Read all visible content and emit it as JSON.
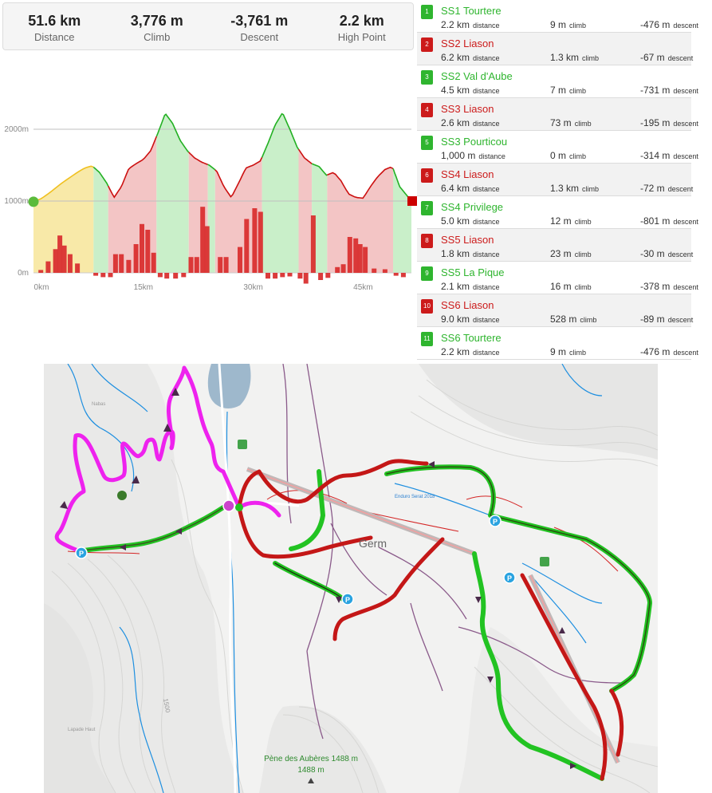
{
  "stats": [
    {
      "value": "51.6 km",
      "label": "Distance"
    },
    {
      "value": "3,776 m",
      "label": "Climb"
    },
    {
      "value": "-3,761 m",
      "label": "Descent"
    },
    {
      "value": "2.2 km",
      "label": "High Point"
    }
  ],
  "chart_data": {
    "type": "area",
    "title": "",
    "xlabel": "",
    "ylabel": "",
    "x_ticks": [
      "0km",
      "15km",
      "30km",
      "45km"
    ],
    "y_ticks": [
      "2000m",
      "1000m",
      "0m"
    ],
    "xlim": [
      0,
      51.6
    ],
    "ylim": [
      0,
      2000
    ],
    "grid": true,
    "x": [
      0,
      1,
      2,
      3,
      4,
      5,
      6,
      7,
      8,
      9,
      10,
      11,
      12,
      13,
      14,
      15,
      16,
      17,
      18,
      19,
      20,
      21,
      22,
      23,
      24,
      25,
      26,
      27,
      28,
      29,
      30,
      31,
      32,
      33,
      34,
      35,
      36,
      37,
      38,
      39,
      40,
      41,
      42,
      43,
      44,
      45,
      46,
      47,
      48,
      49,
      50,
      51.6
    ],
    "elevation": [
      990,
      1030,
      1100,
      1180,
      1260,
      1330,
      1400,
      1460,
      1490,
      1400,
      1250,
      1050,
      1200,
      1450,
      1520,
      1580,
      1700,
      1950,
      2220,
      2080,
      1850,
      1700,
      1600,
      1540,
      1500,
      1420,
      1200,
      1050,
      1250,
      1460,
      1500,
      1560,
      1800,
      2060,
      2230,
      2000,
      1750,
      1600,
      1520,
      1480,
      1360,
      1400,
      1280,
      1100,
      1050,
      1040,
      1200,
      1340,
      1440,
      1480,
      1200,
      1000
    ],
    "segments": [
      {
        "start": 0,
        "end": 8.2,
        "color": "#f8e9a8"
      },
      {
        "start": 8.2,
        "end": 10.2,
        "color": "#c9efc9"
      },
      {
        "start": 10.2,
        "end": 16.8,
        "color": "#f3c5c5"
      },
      {
        "start": 16.8,
        "end": 21.2,
        "color": "#c9efc9"
      },
      {
        "start": 21.2,
        "end": 23.8,
        "color": "#f3c5c5"
      },
      {
        "start": 23.8,
        "end": 24.8,
        "color": "#c9efc9"
      },
      {
        "start": 24.8,
        "end": 31.2,
        "color": "#f3c5c5"
      },
      {
        "start": 31.2,
        "end": 36.2,
        "color": "#c9efc9"
      },
      {
        "start": 36.2,
        "end": 38.0,
        "color": "#f3c5c5"
      },
      {
        "start": 38.0,
        "end": 40.1,
        "color": "#c9efc9"
      },
      {
        "start": 40.1,
        "end": 49.1,
        "color": "#f3c5c5"
      },
      {
        "start": 49.1,
        "end": 51.6,
        "color": "#c9efc9"
      }
    ],
    "grade_bars": [
      {
        "x": 1,
        "v": 40
      },
      {
        "x": 2,
        "v": 160
      },
      {
        "x": 3,
        "v": 330
      },
      {
        "x": 3.6,
        "v": 520
      },
      {
        "x": 4.2,
        "v": 380
      },
      {
        "x": 5,
        "v": 260
      },
      {
        "x": 6,
        "v": 130
      },
      {
        "x": 8.5,
        "v": -40
      },
      {
        "x": 9.5,
        "v": -60
      },
      {
        "x": 10.5,
        "v": -60
      },
      {
        "x": 11.2,
        "v": 260
      },
      {
        "x": 12,
        "v": 260
      },
      {
        "x": 13,
        "v": 180
      },
      {
        "x": 14,
        "v": 400
      },
      {
        "x": 14.8,
        "v": 680
      },
      {
        "x": 15.6,
        "v": 600
      },
      {
        "x": 16.4,
        "v": 280
      },
      {
        "x": 17.3,
        "v": -60
      },
      {
        "x": 18.2,
        "v": -80
      },
      {
        "x": 19.4,
        "v": -80
      },
      {
        "x": 20.5,
        "v": -60
      },
      {
        "x": 21.5,
        "v": 220
      },
      {
        "x": 22.3,
        "v": 220
      },
      {
        "x": 23.1,
        "v": 920
      },
      {
        "x": 23.7,
        "v": 650
      },
      {
        "x": 25.5,
        "v": 220
      },
      {
        "x": 26.3,
        "v": 220
      },
      {
        "x": 28.2,
        "v": 360
      },
      {
        "x": 29.1,
        "v": 750
      },
      {
        "x": 30.2,
        "v": 900
      },
      {
        "x": 31,
        "v": 850
      },
      {
        "x": 32,
        "v": -80
      },
      {
        "x": 33,
        "v": -80
      },
      {
        "x": 34,
        "v": -60
      },
      {
        "x": 35,
        "v": -50
      },
      {
        "x": 36.4,
        "v": -80
      },
      {
        "x": 37.2,
        "v": -150
      },
      {
        "x": 38.2,
        "v": 800
      },
      {
        "x": 39.2,
        "v": -100
      },
      {
        "x": 40.2,
        "v": -70
      },
      {
        "x": 41.5,
        "v": 80
      },
      {
        "x": 42.3,
        "v": 120
      },
      {
        "x": 43.2,
        "v": 500
      },
      {
        "x": 44,
        "v": 480
      },
      {
        "x": 44.6,
        "v": 400
      },
      {
        "x": 45.3,
        "v": 360
      },
      {
        "x": 46.5,
        "v": 60
      },
      {
        "x": 48,
        "v": 50
      },
      {
        "x": 49.5,
        "v": -40
      },
      {
        "x": 50.5,
        "v": -60
      }
    ],
    "start_marker_color": "#5bbb3c",
    "end_marker_color": "#cc0000"
  },
  "segments": [
    {
      "num": "1",
      "name": "SS1 Tourtere",
      "color": "#2fb52f",
      "distance": "2.2 km",
      "climb": "9 m",
      "descent": "-476 m"
    },
    {
      "num": "2",
      "name": "SS2 Liason",
      "color": "#cc1b1b",
      "distance": "6.2 km",
      "climb": "1.3 km",
      "descent": "-67 m"
    },
    {
      "num": "3",
      "name": "SS2 Val d'Aube",
      "color": "#2fb52f",
      "distance": "4.5 km",
      "climb": "7 m",
      "descent": "-731 m"
    },
    {
      "num": "4",
      "name": "SS3 Liason",
      "color": "#cc1b1b",
      "distance": "2.6 km",
      "climb": "73 m",
      "descent": "-195 m"
    },
    {
      "num": "5",
      "name": "SS3 Pourticou",
      "color": "#2fb52f",
      "distance": "1,000 m",
      "climb": "0 m",
      "descent": "-314 m"
    },
    {
      "num": "6",
      "name": "SS4 Liason",
      "color": "#cc1b1b",
      "distance": "6.4 km",
      "climb": "1.3 km",
      "descent": "-72 m"
    },
    {
      "num": "7",
      "name": "SS4 Privilege",
      "color": "#2fb52f",
      "distance": "5.0 km",
      "climb": "12 m",
      "descent": "-801 m"
    },
    {
      "num": "8",
      "name": "SS5 Liason",
      "color": "#cc1b1b",
      "distance": "1.8 km",
      "climb": "23 m",
      "descent": "-30 m"
    },
    {
      "num": "9",
      "name": "SS5 La Pique",
      "color": "#2fb52f",
      "distance": "2.1 km",
      "climb": "16 m",
      "descent": "-378 m"
    },
    {
      "num": "10",
      "name": "SS6 Liason",
      "color": "#cc1b1b",
      "distance": "9.0 km",
      "climb": "528 m",
      "descent": "-89 m"
    },
    {
      "num": "11",
      "name": "SS6 Tourtere",
      "color": "#2fb52f",
      "distance": "2.2 km",
      "climb": "9 m",
      "descent": "-476 m"
    }
  ],
  "units": {
    "distance": "distance",
    "climb": "climb",
    "descent": "descent"
  },
  "map": {
    "labels": {
      "town": "Germ",
      "peak_name": "Pène des Aubères 1488 m",
      "peak_elev": "1488 m",
      "contour_1500": "1500",
      "lapade": "Lapade Haut",
      "nabas": "Nabas",
      "enduro": "Enduro Serat 2018",
      "parking": "P"
    },
    "colors": {
      "magenta": "#ee22ee",
      "green": "#22c322",
      "red": "#c41717",
      "dark_red": "#8a1010",
      "water": "#9eb8cc",
      "river": "#1e8fe0",
      "purple": "#8a5a8a"
    }
  }
}
